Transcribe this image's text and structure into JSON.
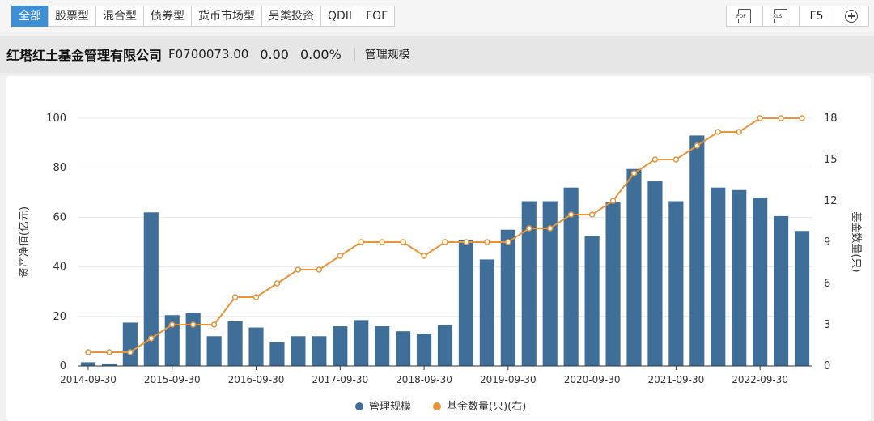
{
  "tabs": [
    {
      "label": "全部",
      "active": true
    },
    {
      "label": "股票型",
      "active": false
    },
    {
      "label": "混合型",
      "active": false
    },
    {
      "label": "债券型",
      "active": false
    },
    {
      "label": "货币市场型",
      "active": false
    },
    {
      "label": "另类投资",
      "active": false
    },
    {
      "label": "QDII",
      "active": false
    },
    {
      "label": "FOF",
      "active": false
    }
  ],
  "tools": {
    "pdf": "PDF",
    "xls": "XLS",
    "refresh": "F5",
    "add_icon": "plus-circle-icon"
  },
  "info": {
    "company": "红塔红土基金管理有限公司",
    "code": "F0700073.00",
    "value": "0.00",
    "pct": "0.00%",
    "metric": "管理规模"
  },
  "colors": {
    "bar": "#3f6f99",
    "line": "#e8943a",
    "accent": "#3d8fd6"
  },
  "chart_data": {
    "type": "bar+line",
    "ylabel": "资产净值(亿元)",
    "y2label": "基金数量(只)",
    "ylim": [
      0,
      100
    ],
    "yticks": [
      0,
      20,
      40,
      60,
      80,
      100
    ],
    "y2lim": [
      0,
      18
    ],
    "y2ticks": [
      0,
      3,
      6,
      9,
      12,
      15,
      18
    ],
    "grid": true,
    "legend_position": "bottom-center",
    "xticklabels": [
      "2014-09-30",
      "2015-09-30",
      "2016-09-30",
      "2017-09-30",
      "2018-09-30",
      "2019-09-30",
      "2020-09-30",
      "2021-09-30",
      "2022-09-30"
    ],
    "xtick_positions": [
      0,
      4,
      8,
      12,
      16,
      20,
      24,
      28,
      32
    ],
    "series": [
      {
        "name": "管理规模",
        "type": "bar",
        "axis": "left",
        "values": [
          1.5,
          1,
          17.5,
          62,
          20.5,
          21.5,
          12,
          18,
          15.5,
          9.5,
          12,
          12,
          16,
          18.5,
          16,
          14,
          13,
          16.5,
          51,
          43,
          55,
          66.5,
          66.5,
          72,
          52.5,
          66,
          79.5,
          74.5,
          66.5,
          93,
          72,
          71,
          68,
          60.5,
          54.5
        ]
      },
      {
        "name": "基金数量(只)(右)",
        "type": "line",
        "axis": "right",
        "values": [
          1,
          1,
          1,
          2,
          3,
          3,
          3,
          5,
          5,
          6,
          7,
          7,
          8,
          9,
          9,
          9,
          8,
          9,
          9,
          9,
          9,
          10,
          10,
          11,
          11,
          12,
          14,
          15,
          15,
          16,
          17,
          17,
          18,
          18,
          18
        ]
      }
    ]
  }
}
